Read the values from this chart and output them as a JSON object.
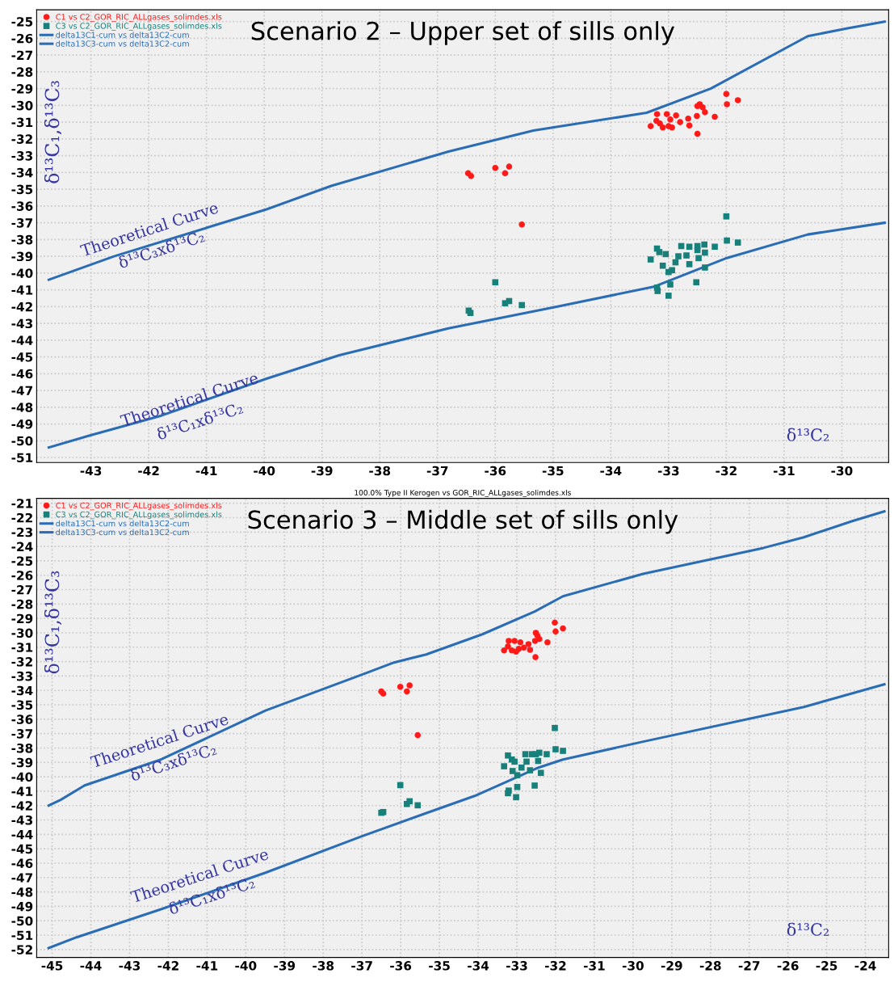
{
  "chart_data": [
    {
      "type": "scatter",
      "title": "Scenario 2 – Upper set of sills only",
      "xlabel": "δ¹³C₂",
      "ylabel": "δ¹³C₁,δ¹³C₃",
      "xlim": [
        -43.94,
        -29.19
      ],
      "ylim": [
        -51.3,
        -24.3
      ],
      "xticks": [
        -43,
        -42,
        -41,
        -40,
        -39,
        -38,
        -37,
        -36,
        -35,
        -34,
        -33,
        -32,
        -31,
        -30
      ],
      "yticks": [
        -25,
        -26,
        -27,
        -28,
        -29,
        -30,
        -31,
        -32,
        -33,
        -34,
        -35,
        -36,
        -37,
        -38,
        -39,
        -40,
        -41,
        -42,
        -43,
        -44,
        -45,
        -46,
        -47,
        -48,
        -49,
        -50,
        -51
      ],
      "grid": true,
      "legend": "top left",
      "annotations": [
        "Theoretical Curve",
        "δ¹³C₃xδ¹³C₂",
        "Theoretical Curve",
        "δ¹³C₁xδ¹³C₂"
      ],
      "series": [
        {
          "name": "C1 vs C2_GOR_RIC_ALLgases_solimdes.xls",
          "marker": "circle",
          "color": "#ff1a1a",
          "x": [
            -36.47,
            -36.42,
            -36.0,
            -35.83,
            -35.76,
            -35.54,
            -33.31,
            -33.2,
            -33.21,
            -33.15,
            -33.1,
            -33.03,
            -33.0,
            -32.97,
            -32.94,
            -32.87,
            -32.8,
            -32.66,
            -32.64,
            -32.51,
            -32.5,
            -32.46,
            -32.41,
            -32.37,
            -32.5,
            -32.2,
            -32.0,
            -31.99,
            -31.8
          ],
          "values": [
            -34.05,
            -34.21,
            -33.73,
            -34.05,
            -33.65,
            -37.1,
            -31.24,
            -30.52,
            -30.92,
            -31.08,
            -31.32,
            -30.52,
            -31.24,
            -30.84,
            -31.32,
            -30.6,
            -31.0,
            -30.79,
            -31.2,
            -30.63,
            -30.04,
            -29.93,
            -30.12,
            -30.41,
            -31.69,
            -30.68,
            -29.32,
            -29.93,
            -29.69
          ]
        },
        {
          "name": "C3 vs C2_GOR_RIC_ALLgases_solimdes.xls",
          "marker": "square",
          "color": "#17807a",
          "x": [
            -36.0,
            -35.83,
            -35.76,
            -35.54,
            -36.43,
            -36.46,
            -33.31,
            -33.2,
            -33.16,
            -33.05,
            -33.1,
            -33.0,
            -32.94,
            -32.88,
            -32.83,
            -32.78,
            -32.69,
            -32.64,
            -32.64,
            -32.5,
            -32.5,
            -32.48,
            -32.38,
            -32.37,
            -32.37,
            -32.2,
            -32.0,
            -31.99,
            -31.8,
            -33.2,
            -33.19,
            -32.97,
            -33.0,
            -32.52
          ],
          "values": [
            -40.55,
            -41.8,
            -41.67,
            -41.91,
            -42.38,
            -42.24,
            -39.19,
            -38.54,
            -38.75,
            -38.87,
            -39.56,
            -39.94,
            -39.83,
            -39.36,
            -39.0,
            -38.39,
            -38.95,
            -38.43,
            -39.47,
            -38.39,
            -38.63,
            -39.11,
            -38.3,
            -38.78,
            -39.67,
            -38.43,
            -36.62,
            -38.06,
            -38.18,
            -40.87,
            -41.07,
            -40.68,
            -41.35,
            -40.55
          ]
        },
        {
          "name": "delta13C1-cum vs delta13C2-cum",
          "type": "line",
          "marker": "none",
          "line_style": "solid",
          "color": "#2a6db5",
          "x": [
            -43.73,
            -43.03,
            -41.78,
            -39.96,
            -38.7,
            -36.81,
            -34.92,
            -33.24,
            -31.99,
            -30.59,
            -29.26
          ],
          "values": [
            -50.4,
            -49.7,
            -48.5,
            -46.3,
            -44.9,
            -43.3,
            -42.0,
            -40.8,
            -39.1,
            -37.7,
            -37.0
          ]
        },
        {
          "name": "delta13C3-cum vs delta13C2-cum",
          "type": "line",
          "marker": "none",
          "line_style": "solid",
          "color": "#2a6db5",
          "x": [
            -43.73,
            -42.6,
            -39.96,
            -38.84,
            -36.81,
            -35.34,
            -33.38,
            -32.27,
            -30.59,
            -29.9,
            -29.26
          ],
          "values": [
            -40.4,
            -39.0,
            -36.2,
            -34.8,
            -32.75,
            -31.5,
            -30.44,
            -29.0,
            -25.87,
            -25.4,
            -25.0
          ]
        }
      ]
    },
    {
      "type": "scatter",
      "title": "Scenario 3 – Middle set of sills only",
      "subtitle": "100.0% Type II Kerogen vs GOR_RIC_ALLgases_solimdes.xls",
      "xlabel": "δ¹³C₂",
      "ylabel": "δ¹³C₁,δ¹³C₃",
      "xlim": [
        -45.4,
        -23.4
      ],
      "ylim": [
        -52.55,
        -20.66
      ],
      "xticks": [
        -45,
        -44,
        -43,
        -42,
        -41,
        -40,
        -39,
        -38,
        -37,
        -36,
        -35,
        -34,
        -33,
        -32,
        -31,
        -30,
        -29,
        -28,
        -27,
        -26,
        -25,
        -24
      ],
      "yticks": [
        -21,
        -22,
        -23,
        -24,
        -25,
        -26,
        -27,
        -28,
        -29,
        -30,
        -31,
        -32,
        -33,
        -34,
        -35,
        -36,
        -37,
        -38,
        -39,
        -40,
        -41,
        -42,
        -43,
        -44,
        -45,
        -46,
        -47,
        -48,
        -49,
        -50,
        -51,
        -52
      ],
      "grid": true,
      "legend": "top left",
      "annotations": [
        "Theoretical Curve",
        "δ¹³C₃xδ¹³C₂",
        "Theoretical Curve",
        "δ¹³C₁xδ¹³C₂"
      ],
      "series": [
        {
          "name": "C1 vs C2_GOR_RIC_ALLgases_solimdes.xls",
          "marker": "circle",
          "color": "#ff1a1a",
          "x": [
            -36.5,
            -36.45,
            -36.01,
            -35.84,
            -35.77,
            -35.56,
            -33.33,
            -33.21,
            -33.23,
            -33.13,
            -33.06,
            -33.02,
            -32.95,
            -32.91,
            -32.82,
            -32.7,
            -32.66,
            -32.53,
            -32.51,
            -32.47,
            -32.42,
            -32.52,
            -32.21,
            -32.02,
            -32.0,
            -31.81
          ],
          "values": [
            -34.07,
            -34.22,
            -33.75,
            -34.07,
            -33.65,
            -37.11,
            -31.22,
            -30.56,
            -30.94,
            -31.22,
            -30.56,
            -31.31,
            -31.12,
            -30.66,
            -31.03,
            -30.79,
            -31.18,
            -30.56,
            -30.0,
            -30.19,
            -30.43,
            -31.69,
            -30.66,
            -29.29,
            -29.91,
            -29.69
          ]
        },
        {
          "name": "C3 vs C2_GOR_RIC_ALLgases_solimdes.xls",
          "marker": "square",
          "color": "#17807a",
          "x": [
            -36.01,
            -35.84,
            -35.77,
            -35.56,
            -36.5,
            -36.45,
            -33.33,
            -33.23,
            -33.13,
            -33.06,
            -33.11,
            -32.99,
            -32.88,
            -32.78,
            -32.75,
            -32.66,
            -32.61,
            -32.51,
            -32.45,
            -32.42,
            -32.38,
            -32.23,
            -32.02,
            -32.0,
            -31.81,
            -33.21,
            -33.23,
            -32.99,
            -33.02,
            -32.54
          ],
          "values": [
            -40.58,
            -41.89,
            -41.7,
            -41.98,
            -42.5,
            -42.45,
            -39.27,
            -38.52,
            -38.8,
            -38.95,
            -39.6,
            -39.89,
            -39.36,
            -38.43,
            -38.95,
            -39.55,
            -38.43,
            -38.43,
            -38.9,
            -38.33,
            -39.73,
            -38.43,
            -36.61,
            -38.09,
            -38.2,
            -40.96,
            -41.14,
            -40.71,
            -41.42,
            -40.61
          ]
        },
        {
          "name": "delta13C1-cum vs delta13C2-cum",
          "type": "line",
          "marker": "none",
          "line_style": "solid",
          "color": "#2a6db5",
          "x": [
            -45.09,
            -44.37,
            -42.19,
            -39.49,
            -37.0,
            -35.44,
            -34.09,
            -32.44,
            -31.81,
            -29.74,
            -25.59,
            -23.51
          ],
          "values": [
            -51.9,
            -51.15,
            -49.2,
            -46.66,
            -44.13,
            -42.62,
            -41.33,
            -39.36,
            -38.8,
            -37.56,
            -35.15,
            -33.58
          ]
        },
        {
          "name": "delta13C3-cum vs delta13C2-cum",
          "type": "line",
          "marker": "none",
          "line_style": "solid",
          "color": "#2a6db5",
          "x": [
            -45.09,
            -44.78,
            -44.16,
            -42.19,
            -39.49,
            -36.9,
            -36.17,
            -35.34,
            -33.89,
            -32.54,
            -31.81,
            -29.74,
            -26.63,
            -25.59,
            -24.34,
            -23.51
          ],
          "values": [
            -42.0,
            -41.6,
            -40.6,
            -38.8,
            -35.4,
            -32.8,
            -32.06,
            -31.5,
            -30.1,
            -28.52,
            -27.46,
            -25.9,
            -24.1,
            -23.36,
            -22.24,
            -21.56
          ]
        }
      ]
    }
  ]
}
